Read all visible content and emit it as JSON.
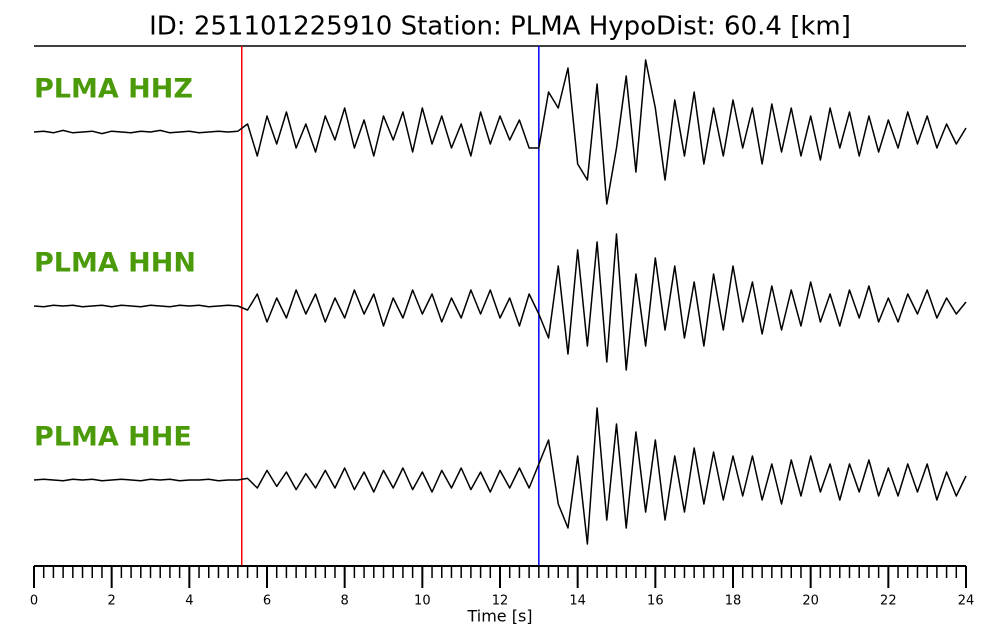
{
  "chart_data": {
    "type": "seismogram",
    "title": "ID: 251101225910   Station: PLMA   HypoDist:    60.4 [km]",
    "xlabel": "Time [s]",
    "xlim": [
      0,
      24
    ],
    "xticks": [
      0,
      2,
      4,
      6,
      8,
      10,
      12,
      14,
      16,
      18,
      20,
      22,
      24
    ],
    "x": [
      0,
      0.25,
      0.5,
      0.75,
      1,
      1.25,
      1.5,
      1.75,
      2,
      2.25,
      2.5,
      2.75,
      3,
      3.25,
      3.5,
      3.75,
      4,
      4.25,
      4.5,
      4.75,
      5,
      5.25,
      5.5,
      5.75,
      6,
      6.25,
      6.5,
      6.75,
      7,
      7.25,
      7.5,
      7.75,
      8,
      8.25,
      8.5,
      8.75,
      9,
      9.25,
      9.5,
      9.75,
      10,
      10.25,
      10.5,
      10.75,
      11,
      11.25,
      11.5,
      11.75,
      12,
      12.25,
      12.5,
      12.75,
      13,
      13.25,
      13.5,
      13.75,
      14,
      14.25,
      14.5,
      14.75,
      15,
      15.25,
      15.5,
      15.75,
      16,
      16.25,
      16.5,
      16.75,
      17,
      17.25,
      17.5,
      17.75,
      18,
      18.25,
      18.5,
      18.75,
      19,
      19.25,
      19.5,
      19.75,
      20,
      20.25,
      20.5,
      20.75,
      21,
      21.25,
      21.5,
      21.75,
      22,
      22.25,
      22.5,
      22.75,
      23,
      23.25,
      23.5,
      23.75,
      24
    ],
    "label_color": "#4a9a0a",
    "markers": [
      {
        "x": 5.35,
        "color": "#ff0000"
      },
      {
        "x": 13.0,
        "color": "#0000ff"
      }
    ],
    "series": [
      {
        "name": "PLMA HHZ",
        "color": "#000000",
        "values": [
          0,
          0.01,
          -0.01,
          0.02,
          -0.01,
          0,
          0.01,
          -0.02,
          0.01,
          0,
          -0.01,
          0.01,
          0,
          0.02,
          -0.01,
          0,
          0.01,
          -0.01,
          0,
          0.01,
          0,
          0.01,
          0.1,
          -0.3,
          0.2,
          -0.15,
          0.25,
          -0.2,
          0.1,
          -0.25,
          0.2,
          -0.1,
          0.3,
          -0.2,
          0.15,
          -0.3,
          0.2,
          -0.1,
          0.25,
          -0.25,
          0.3,
          -0.15,
          0.2,
          -0.2,
          0.1,
          -0.3,
          0.25,
          -0.15,
          0.2,
          -0.1,
          0.15,
          -0.2,
          -0.2,
          0.5,
          0.3,
          0.8,
          -0.4,
          -0.6,
          0.6,
          -0.9,
          -0.2,
          0.7,
          -0.5,
          0.9,
          0.3,
          -0.6,
          0.4,
          -0.3,
          0.5,
          -0.4,
          0.3,
          -0.3,
          0.4,
          -0.2,
          0.3,
          -0.4,
          0.35,
          -0.25,
          0.3,
          -0.3,
          0.2,
          -0.35,
          0.3,
          -0.2,
          0.25,
          -0.3,
          0.2,
          -0.25,
          0.15,
          -0.2,
          0.25,
          -0.15,
          0.2,
          -0.2,
          0.1,
          -0.15,
          0.05
        ]
      },
      {
        "name": "PLMA HHN",
        "color": "#000000",
        "values": [
          0,
          -0.01,
          0.01,
          0,
          0.01,
          -0.01,
          0,
          0.01,
          -0.01,
          0.01,
          0,
          -0.01,
          0.01,
          0,
          -0.01,
          0.01,
          0,
          0.01,
          -0.01,
          0,
          0.01,
          0,
          -0.05,
          0.15,
          -0.2,
          0.1,
          -0.15,
          0.2,
          -0.1,
          0.15,
          -0.2,
          0.1,
          -0.15,
          0.2,
          -0.1,
          0.15,
          -0.25,
          0.1,
          -0.15,
          0.2,
          -0.1,
          0.15,
          -0.2,
          0.1,
          -0.15,
          0.2,
          -0.1,
          0.2,
          -0.15,
          0.1,
          -0.25,
          0.15,
          -0.1,
          -0.4,
          0.5,
          -0.6,
          0.7,
          -0.5,
          0.8,
          -0.7,
          0.9,
          -0.8,
          0.4,
          -0.5,
          0.6,
          -0.3,
          0.5,
          -0.4,
          0.3,
          -0.5,
          0.4,
          -0.3,
          0.5,
          -0.2,
          0.3,
          -0.35,
          0.25,
          -0.3,
          0.2,
          -0.25,
          0.3,
          -0.2,
          0.15,
          -0.25,
          0.2,
          -0.15,
          0.25,
          -0.2,
          0.1,
          -0.2,
          0.15,
          -0.1,
          0.2,
          -0.15,
          0.1,
          -0.1,
          0.05
        ]
      },
      {
        "name": "PLMA HHE",
        "color": "#000000",
        "values": [
          0,
          0.01,
          0,
          -0.01,
          0.01,
          0,
          0.01,
          -0.01,
          0,
          0.01,
          0,
          -0.01,
          0.01,
          0,
          0.01,
          -0.01,
          0,
          0,
          0.01,
          -0.01,
          0,
          0,
          0.02,
          -0.1,
          0.12,
          -0.08,
          0.1,
          -0.12,
          0.08,
          -0.1,
          0.12,
          -0.1,
          0.15,
          -0.12,
          0.1,
          -0.15,
          0.12,
          -0.1,
          0.15,
          -0.12,
          0.1,
          -0.15,
          0.12,
          -0.1,
          0.15,
          -0.12,
          0.1,
          -0.15,
          0.12,
          -0.1,
          0.15,
          -0.1,
          0.2,
          0.5,
          -0.3,
          -0.6,
          0.3,
          -0.8,
          0.9,
          -0.5,
          0.7,
          -0.6,
          0.6,
          -0.4,
          0.5,
          -0.5,
          0.3,
          -0.4,
          0.4,
          -0.3,
          0.35,
          -0.25,
          0.3,
          -0.2,
          0.3,
          -0.25,
          0.2,
          -0.3,
          0.25,
          -0.2,
          0.3,
          -0.15,
          0.2,
          -0.25,
          0.2,
          -0.15,
          0.25,
          -0.2,
          0.15,
          -0.2,
          0.2,
          -0.15,
          0.2,
          -0.25,
          0.1,
          -0.2,
          0.05
        ]
      }
    ]
  }
}
